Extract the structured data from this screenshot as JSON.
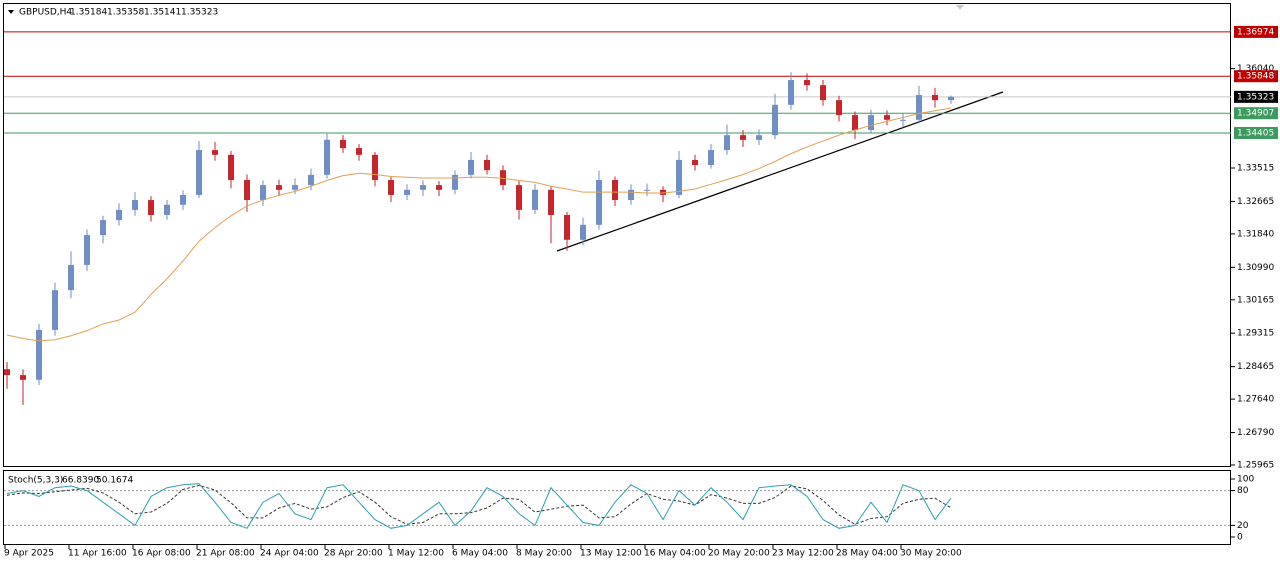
{
  "chart_data": {
    "type": "candlestick",
    "symbol": "GBPUSD,H4",
    "header_values": [
      1.35184,
      1.35358,
      1.35141,
      1.35323
    ],
    "categories": [
      "9 Apr 2025",
      null,
      null,
      null,
      "11 Apr 16:00",
      null,
      null,
      null,
      "16 Apr 08:00",
      null,
      null,
      null,
      "21 Apr 08:00",
      null,
      null,
      null,
      "24 Apr 04:00",
      null,
      null,
      null,
      "28 Apr 20:00",
      null,
      null,
      null,
      "1 May 12:00",
      null,
      null,
      null,
      "6 May 04:00",
      null,
      null,
      null,
      "8 May 20:00",
      null,
      null,
      null,
      "13 May 12:00",
      null,
      null,
      null,
      "16 May 04:00",
      null,
      null,
      null,
      "20 May 20:00",
      null,
      null,
      null,
      "23 May 12:00",
      null,
      null,
      null,
      "28 May 04:00",
      null,
      null,
      null,
      "30 May 20:00",
      null,
      null,
      null
    ],
    "candles": [
      [
        1.284,
        1.2858,
        1.279,
        1.2825
      ],
      [
        1.2825,
        1.284,
        1.2749,
        1.2813
      ],
      [
        1.2813,
        1.2955,
        1.28,
        1.294
      ],
      [
        1.294,
        1.306,
        1.2925,
        1.3041
      ],
      [
        1.3041,
        1.314,
        1.302,
        1.3105
      ],
      [
        1.3105,
        1.3195,
        1.309,
        1.3181
      ],
      [
        1.3181,
        1.323,
        1.316,
        1.3219
      ],
      [
        1.3219,
        1.3262,
        1.3205,
        1.3245
      ],
      [
        1.3245,
        1.329,
        1.323,
        1.327
      ],
      [
        1.327,
        1.328,
        1.3215,
        1.3232
      ],
      [
        1.3232,
        1.327,
        1.322,
        1.3258
      ],
      [
        1.3258,
        1.3295,
        1.3245,
        1.3283
      ],
      [
        1.3283,
        1.342,
        1.3275,
        1.3397
      ],
      [
        1.3397,
        1.3418,
        1.337,
        1.3385
      ],
      [
        1.3385,
        1.3395,
        1.33,
        1.3321
      ],
      [
        1.3321,
        1.3335,
        1.324,
        1.327
      ],
      [
        1.327,
        1.332,
        1.3255,
        1.3308
      ],
      [
        1.3308,
        1.3322,
        1.328,
        1.3296
      ],
      [
        1.3296,
        1.3325,
        1.3285,
        1.3308
      ],
      [
        1.3308,
        1.335,
        1.3295,
        1.3334
      ],
      [
        1.3334,
        1.3442,
        1.3325,
        1.3423
      ],
      [
        1.3423,
        1.3435,
        1.339,
        1.3402
      ],
      [
        1.3402,
        1.3412,
        1.337,
        1.3385
      ],
      [
        1.3385,
        1.3392,
        1.3305,
        1.3321
      ],
      [
        1.3321,
        1.333,
        1.3265,
        1.3283
      ],
      [
        1.3283,
        1.331,
        1.327,
        1.3296
      ],
      [
        1.3296,
        1.332,
        1.328,
        1.3308
      ],
      [
        1.3308,
        1.3318,
        1.328,
        1.3296
      ],
      [
        1.3296,
        1.3345,
        1.3285,
        1.3334
      ],
      [
        1.3334,
        1.3392,
        1.3325,
        1.3372
      ],
      [
        1.3372,
        1.3385,
        1.3335,
        1.3346
      ],
      [
        1.3346,
        1.3358,
        1.3295,
        1.3308
      ],
      [
        1.3308,
        1.3318,
        1.322,
        1.3245
      ],
      [
        1.3245,
        1.331,
        1.3235,
        1.3296
      ],
      [
        1.3296,
        1.3305,
        1.316,
        1.3232
      ],
      [
        1.3232,
        1.324,
        1.3141,
        1.3169
      ],
      [
        1.3169,
        1.3225,
        1.3155,
        1.3207
      ],
      [
        1.3207,
        1.3345,
        1.3195,
        1.3321
      ],
      [
        1.3321,
        1.333,
        1.3255,
        1.327
      ],
      [
        1.327,
        1.331,
        1.3258,
        1.3296
      ],
      [
        1.3296,
        1.3312,
        1.328,
        1.3296
      ],
      [
        1.3296,
        1.3305,
        1.3265,
        1.3283
      ],
      [
        1.3283,
        1.3395,
        1.3275,
        1.3372
      ],
      [
        1.3372,
        1.3385,
        1.3345,
        1.3359
      ],
      [
        1.3359,
        1.3412,
        1.335,
        1.3397
      ],
      [
        1.3397,
        1.3462,
        1.3385,
        1.3435
      ],
      [
        1.3435,
        1.3448,
        1.3405,
        1.3423
      ],
      [
        1.3423,
        1.345,
        1.341,
        1.3435
      ],
      [
        1.3435,
        1.354,
        1.3425,
        1.3512
      ],
      [
        1.3512,
        1.3595,
        1.35,
        1.3575
      ],
      [
        1.3575,
        1.3592,
        1.3548,
        1.3562
      ],
      [
        1.3562,
        1.3575,
        1.351,
        1.3524
      ],
      [
        1.3524,
        1.3535,
        1.347,
        1.3486
      ],
      [
        1.3486,
        1.3495,
        1.3425,
        1.3448
      ],
      [
        1.3448,
        1.35,
        1.344,
        1.3486
      ],
      [
        1.3486,
        1.3498,
        1.346,
        1.3474
      ],
      [
        1.3474,
        1.349,
        1.3455,
        1.3474
      ],
      [
        1.3474,
        1.356,
        1.3465,
        1.3537
      ],
      [
        1.3537,
        1.3555,
        1.3505,
        1.3524
      ],
      [
        1.3524,
        1.35358,
        1.35141,
        1.35323
      ]
    ],
    "up_color": "#6f8fc4",
    "down_color": "#c4262c",
    "ma": {
      "color": "#e0a050",
      "values": [
        1.2927,
        1.2918,
        1.2912,
        1.2915,
        1.2925,
        1.2938,
        1.2955,
        1.2965,
        1.2985,
        1.303,
        1.307,
        1.3115,
        1.3165,
        1.32,
        1.323,
        1.3255,
        1.327,
        1.3282,
        1.3292,
        1.3305,
        1.332,
        1.3332,
        1.3338,
        1.3335,
        1.333,
        1.3328,
        1.3326,
        1.3326,
        1.3326,
        1.3328,
        1.3328,
        1.3325,
        1.332,
        1.3315,
        1.3305,
        1.3298,
        1.329,
        1.329,
        1.329,
        1.329,
        1.3288,
        1.3288,
        1.3292,
        1.3298,
        1.331,
        1.3322,
        1.3335,
        1.335,
        1.3368,
        1.3388,
        1.3405,
        1.342,
        1.3435,
        1.3448,
        1.346,
        1.347,
        1.348,
        1.349,
        1.3497,
        1.3504
      ]
    },
    "levels": [
      {
        "value": 1.36974,
        "color": "#c00000",
        "text_color": "#ffffff"
      },
      {
        "value": 1.35848,
        "color": "#c00000",
        "text_color": "#ffffff"
      },
      {
        "value": 1.35323,
        "color": "#000000",
        "text_color": "#ffffff"
      },
      {
        "value": 1.34907,
        "color": "#3c9a5f",
        "text_color": "#ffffff"
      },
      {
        "value": 1.34405,
        "color": "#3c9a5f",
        "text_color": "#ffffff"
      }
    ],
    "ylim": [
      1.25965,
      1.37658
    ],
    "yticks": [
      {
        "value": 1.3604,
        "label": "1.36040"
      },
      1.33515,
      1.32665,
      {
        "value": 1.3184,
        "label": "1.31840"
      },
      {
        "value": 1.3099,
        "label": "1.30990"
      },
      1.30165,
      1.29315,
      1.28465,
      {
        "value": 1.2764,
        "label": "1.27640"
      },
      {
        "value": 1.2679,
        "label": "1.26790"
      },
      1.25965
    ],
    "grid": false,
    "stoch": {
      "title": "Stoch(5,3,3)",
      "readings": [
        66.839,
        50.1674
      ],
      "reading_labels": [
        "66.8390",
        "50.1674"
      ],
      "main_color": "#2aa0b0",
      "signal_color": "#333333",
      "main": [
        75,
        80,
        70,
        85,
        88,
        80,
        60,
        40,
        20,
        70,
        85,
        90,
        92,
        60,
        25,
        15,
        60,
        75,
        40,
        30,
        85,
        90,
        60,
        30,
        15,
        20,
        40,
        60,
        20,
        45,
        85,
        70,
        40,
        20,
        85,
        55,
        25,
        20,
        60,
        90,
        75,
        30,
        80,
        55,
        85,
        60,
        30,
        85,
        88,
        90,
        70,
        30,
        15,
        20,
        60,
        25,
        90,
        80,
        30,
        66.839
      ],
      "signal": [
        72,
        76,
        75,
        78,
        81,
        84,
        76,
        60,
        40,
        43,
        58,
        82,
        89,
        81,
        59,
        33,
        33,
        50,
        58,
        48,
        52,
        68,
        78,
        60,
        35,
        22,
        25,
        40,
        40,
        42,
        50,
        67,
        65,
        43,
        48,
        53,
        55,
        33,
        35,
        57,
        75,
        65,
        62,
        55,
        73,
        67,
        58,
        58,
        68,
        88,
        83,
        63,
        38,
        22,
        32,
        35,
        58,
        65,
        67,
        50.1674
      ],
      "levels": [
        80,
        20
      ],
      "ylim": [
        0,
        100
      ],
      "yticks": [
        100,
        80,
        20,
        0
      ]
    }
  }
}
